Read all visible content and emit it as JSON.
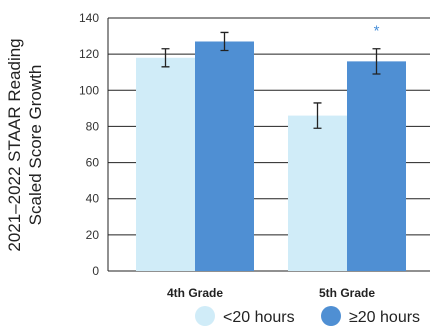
{
  "chart_data": {
    "type": "bar",
    "ylabel_lines": [
      "2021–2022 STAAR Reading",
      "Scaled Score Growth"
    ],
    "categories": [
      "4th Grade",
      "5th Grade"
    ],
    "ylim": [
      0,
      140
    ],
    "yticks": [
      0,
      20,
      40,
      60,
      80,
      100,
      120,
      140
    ],
    "grid": true,
    "legend_position": "bottom-right",
    "series": [
      {
        "name": "<20 hours",
        "color": "#d0ecf8",
        "values": [
          118,
          86
        ],
        "error": [
          [
            113,
            123
          ],
          [
            79,
            93
          ]
        ]
      },
      {
        "name": "≥20 hours",
        "color": "#4f8fd3",
        "values": [
          127,
          116
        ],
        "error": [
          [
            122,
            132
          ],
          [
            109,
            123
          ]
        ]
      }
    ],
    "annotations": [
      {
        "text": "*",
        "category": 1,
        "series": 1
      }
    ]
  }
}
